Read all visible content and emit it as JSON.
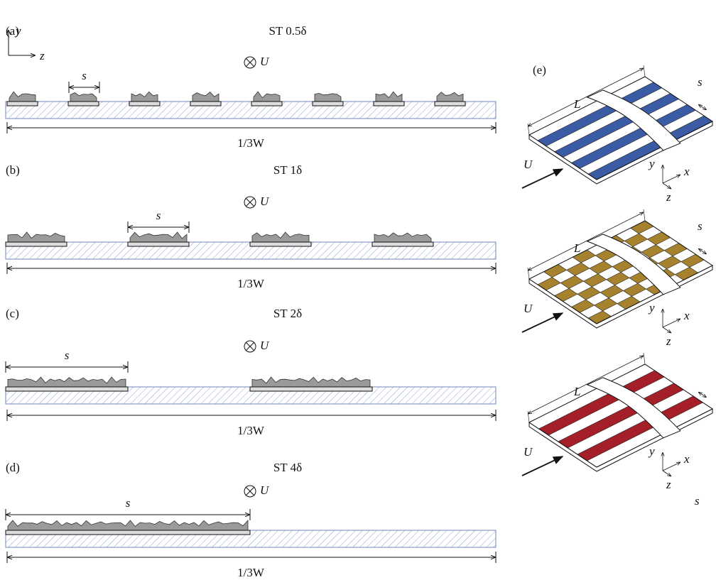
{
  "panels": [
    {
      "label": "(a)",
      "title": "ST 0.5δ",
      "flow": "U",
      "spacing": "s",
      "width": "1/3W"
    },
    {
      "label": "(b)",
      "title": "ST 1δ",
      "flow": "U",
      "spacing": "s",
      "width": "1/3W"
    },
    {
      "label": "(c)",
      "title": "ST 2δ",
      "flow": "U",
      "spacing": "s",
      "width": "1/3W"
    },
    {
      "label": "(d)",
      "title": "ST 4δ",
      "flow": "U",
      "spacing": "s",
      "width": "1/3W"
    }
  ],
  "axes": {
    "y": "y",
    "z": "z"
  },
  "panel_e": {
    "label": "(e)",
    "surfaces": [
      {
        "length": "L",
        "spacing": "s",
        "flow": "U",
        "y": "y",
        "x": "x",
        "z": "z"
      },
      {
        "length": "L",
        "spacing": "s",
        "flow": "U",
        "y": "y",
        "x": "x",
        "z": "z"
      },
      {
        "length": "L",
        "spacing": "s",
        "flow": "U",
        "y": "y",
        "x": "x",
        "z": "z"
      }
    ]
  }
}
